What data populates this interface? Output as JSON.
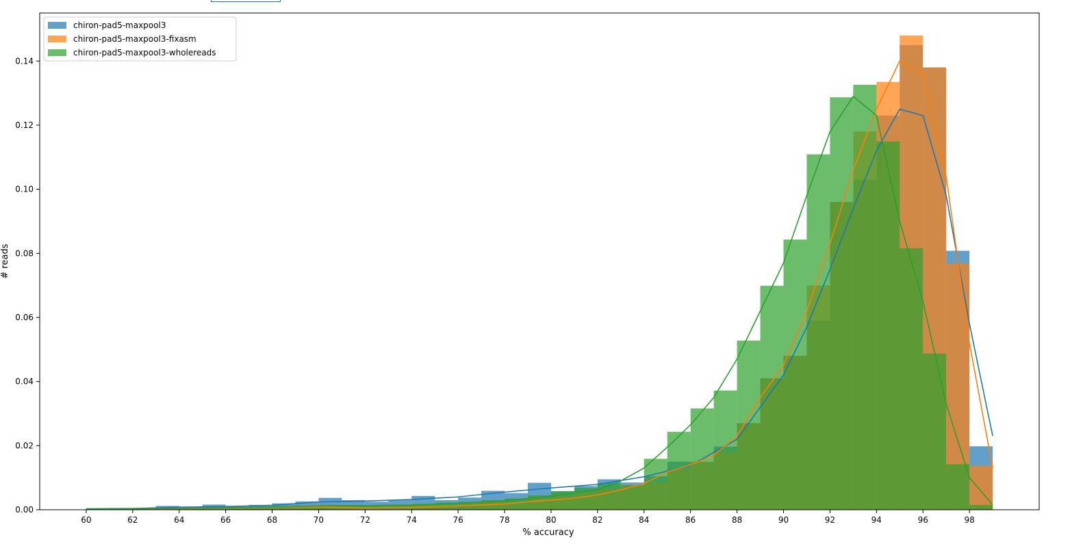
{
  "chart_data": {
    "type": "bar",
    "subtype": "overlaid histogram with density lines",
    "title": "",
    "xlabel": "% accuracy",
    "ylabel": "# reads",
    "xlim": [
      58,
      101
    ],
    "ylim": [
      0,
      0.155
    ],
    "xticks": [
      "60",
      "62",
      "64",
      "66",
      "68",
      "70",
      "72",
      "74",
      "76",
      "78",
      "80",
      "82",
      "84",
      "86",
      "88",
      "90",
      "92",
      "94",
      "96",
      "98"
    ],
    "yticks": [
      "0.00",
      "0.02",
      "0.04",
      "0.06",
      "0.08",
      "0.10",
      "0.12",
      "0.14"
    ],
    "grid": false,
    "legend_position": "top-left",
    "bin_edges": [
      60,
      61,
      62,
      63,
      64,
      65,
      66,
      67,
      68,
      69,
      70,
      71,
      72,
      73,
      74,
      75,
      76,
      77,
      78,
      79,
      80,
      81,
      82,
      83,
      84,
      85,
      86,
      87,
      88,
      89,
      90,
      91,
      92,
      93,
      94,
      95,
      96,
      97,
      98,
      99
    ],
    "series": [
      {
        "name": "chiron-pad5-maxpool3",
        "color": "#1f77b4",
        "bar_values": [
          0.0003,
          0.0003,
          0.0005,
          0.0012,
          0.001,
          0.0016,
          0.0012,
          0.0015,
          0.002,
          0.0026,
          0.0037,
          0.003,
          0.0025,
          0.003,
          0.0043,
          0.003,
          0.0038,
          0.0059,
          0.0052,
          0.0084,
          0.0058,
          0.0074,
          0.0095,
          0.0085,
          0.0105,
          0.015,
          0.0148,
          0.0197,
          0.027,
          0.041,
          0.048,
          0.059,
          0.096,
          0.103,
          0.123,
          0.145,
          0.138,
          0.0808,
          0.0198
        ],
        "line_x": [
          60,
          62,
          64,
          66,
          68,
          70,
          72,
          74,
          76,
          78,
          80,
          82,
          84,
          86,
          88,
          89,
          90,
          91,
          92,
          93,
          94,
          95,
          96,
          97,
          98,
          99
        ],
        "line_y": [
          0.0003,
          0.0004,
          0.0008,
          0.001,
          0.0014,
          0.0024,
          0.0027,
          0.0032,
          0.004,
          0.0055,
          0.0068,
          0.0079,
          0.0103,
          0.0138,
          0.022,
          0.032,
          0.042,
          0.057,
          0.075,
          0.094,
          0.112,
          0.125,
          0.123,
          0.098,
          0.058,
          0.023
        ]
      },
      {
        "name": "chiron-pad5-maxpool3-fixasm",
        "color": "#ff7f0e",
        "bar_values": [
          0.0001,
          0.0002,
          0.0003,
          0.0006,
          0.0005,
          0.0008,
          0.0006,
          0.0008,
          0.001,
          0.0012,
          0.0015,
          0.0012,
          0.001,
          0.0012,
          0.0018,
          0.0014,
          0.0022,
          0.0027,
          0.0025,
          0.0035,
          0.0042,
          0.0055,
          0.0065,
          0.0078,
          0.0085,
          0.0125,
          0.015,
          0.018,
          0.027,
          0.041,
          0.048,
          0.07,
          0.096,
          0.118,
          0.1335,
          0.148,
          0.138,
          0.0768,
          0.0137
        ],
        "line_x": [
          60,
          62,
          64,
          66,
          68,
          70,
          72,
          74,
          76,
          78,
          79,
          80,
          81,
          82,
          83,
          84,
          85,
          86,
          87,
          88,
          89,
          90,
          91,
          92,
          93,
          94,
          95,
          96,
          97,
          98,
          99
        ],
        "line_y": [
          0.0001,
          0.0002,
          0.0003,
          0.0005,
          0.0007,
          0.0009,
          0.0005,
          0.0007,
          0.0012,
          0.0018,
          0.0025,
          0.003,
          0.0036,
          0.0046,
          0.0062,
          0.0082,
          0.0118,
          0.014,
          0.017,
          0.023,
          0.035,
          0.045,
          0.062,
          0.083,
          0.106,
          0.125,
          0.14,
          0.136,
          0.104,
          0.052,
          0.013
        ]
      },
      {
        "name": "chiron-pad5-maxpool3-wholereads",
        "color": "#2ca02c",
        "bar_values": [
          0.0002,
          0.0002,
          0.0003,
          0.0005,
          0.0005,
          0.0008,
          0.0008,
          0.001,
          0.0012,
          0.0013,
          0.0015,
          0.0015,
          0.0012,
          0.0015,
          0.0018,
          0.0022,
          0.0025,
          0.003,
          0.0035,
          0.0045,
          0.0058,
          0.0068,
          0.0083,
          0.0077,
          0.0159,
          0.0243,
          0.0316,
          0.0372,
          0.0528,
          0.0699,
          0.0843,
          0.1109,
          0.1287,
          0.1326,
          0.1149,
          0.0816,
          0.0487,
          0.0142,
          0.0015
        ],
        "line_x": [
          60,
          62,
          64,
          66,
          68,
          70,
          72,
          74,
          76,
          78,
          80,
          82,
          83,
          84,
          85,
          86,
          87,
          88,
          89,
          90,
          91,
          92,
          93,
          94,
          95,
          96,
          97,
          98,
          99
        ],
        "line_y": [
          0.0002,
          0.0003,
          0.0004,
          0.0006,
          0.0008,
          0.0012,
          0.0013,
          0.0015,
          0.002,
          0.0028,
          0.0042,
          0.0062,
          0.009,
          0.013,
          0.0195,
          0.0265,
          0.035,
          0.047,
          0.062,
          0.077,
          0.098,
          0.118,
          0.129,
          0.123,
          0.09,
          0.065,
          0.033,
          0.01,
          0.0015
        ]
      }
    ]
  }
}
